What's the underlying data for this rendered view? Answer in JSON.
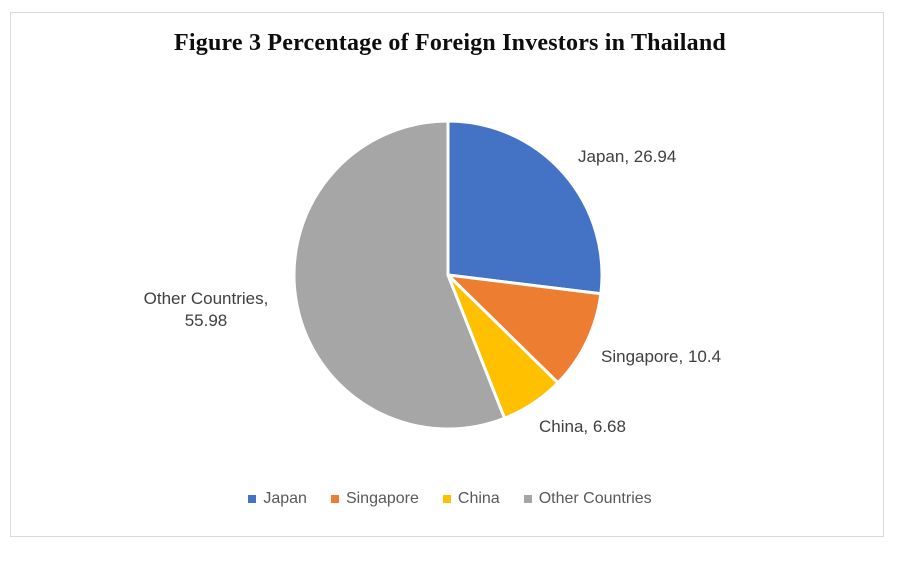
{
  "chart_data": {
    "type": "pie",
    "title": "Figure 3 Percentage of Foreign Investors in Thailand",
    "unit": "percent",
    "start_angle_deg": 0,
    "direction": "clockwise",
    "legend_position": "bottom",
    "slices": [
      {
        "name": "Japan",
        "value": 26.94,
        "color": "#4472C4"
      },
      {
        "name": "Singapore",
        "value": 10.4,
        "color": "#ED7D31"
      },
      {
        "name": "China",
        "value": 6.68,
        "color": "#FFC000"
      },
      {
        "name": "Other Countries",
        "value": 55.98,
        "color": "#A6A6A6"
      }
    ],
    "data_labels": {
      "japan": "Japan, 26.94",
      "singapore": "Singapore, 10.4",
      "china": "China, 6.68",
      "other_line1": "Other Countries,",
      "other_line2": "55.98"
    }
  }
}
